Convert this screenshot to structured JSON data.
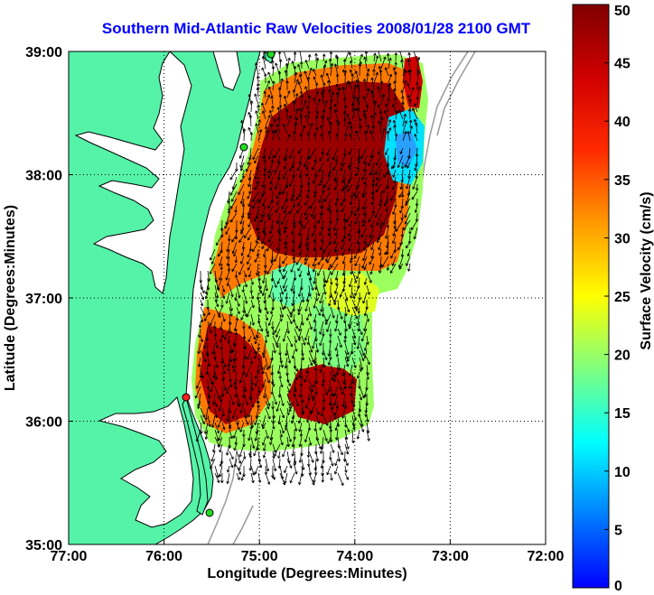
{
  "title": "Southern Mid-Atlantic Raw Velocities 2008/01/28 2100 GMT",
  "chart_data": {
    "type": "heatmap",
    "title": "Southern Mid-Atlantic Raw Velocities 2008/01/28 2100 GMT",
    "xlabel": "Longitude (Degrees:Minutes)",
    "ylabel": "Latitude (Degrees:Minutes)",
    "colorbar_label": "Surface Velocity (cm/s)",
    "x_ticks": [
      "77:00",
      "76:00",
      "75:00",
      "74:00",
      "73:00",
      "72:00"
    ],
    "y_ticks": [
      "39:00",
      "38:00",
      "37:00",
      "36:00",
      "35:00"
    ],
    "colorbar_ticks": [
      "50",
      "45",
      "40",
      "35",
      "30",
      "25",
      "20",
      "15",
      "10",
      "5",
      "0"
    ],
    "xlim": [
      -77,
      -72
    ],
    "ylim": [
      35,
      39
    ],
    "clim": [
      0,
      50
    ],
    "grid": "dotted",
    "colorbar_placement": "right",
    "colors": {
      "land": "#55f3a8",
      "water": "#ffffff",
      "vectors": "#000000",
      "site_green": "#22dd22",
      "site_red": "#ff2020",
      "bathymetry": "#999999"
    }
  }
}
